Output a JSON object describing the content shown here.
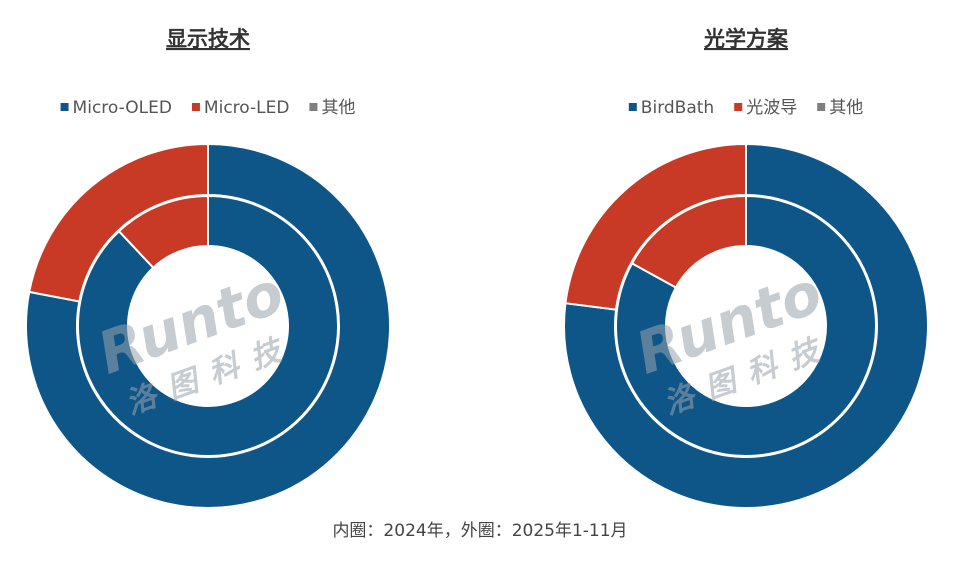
{
  "chart_data": [
    {
      "type": "donut",
      "title": "显示技术",
      "categories": [
        "Micro-OLED",
        "Micro-LED",
        "其他"
      ],
      "colors": [
        "#0e5688",
        "#c83a25",
        "#7f7f7f"
      ],
      "inner_values": [
        88,
        12,
        0
      ],
      "outer_values": [
        78,
        22,
        0
      ]
    },
    {
      "type": "donut",
      "title": "光学方案",
      "categories": [
        "BirdBath",
        "光波导",
        "其他"
      ],
      "colors": [
        "#0e5688",
        "#c83a25",
        "#7f7f7f"
      ],
      "inner_values": [
        83,
        17,
        0
      ],
      "outer_values": [
        77,
        23,
        0
      ]
    }
  ],
  "note": "内圈：2024年，外圈：2025年1-11月",
  "watermark": {
    "brand": "Runto",
    "company": "洛图科技"
  }
}
